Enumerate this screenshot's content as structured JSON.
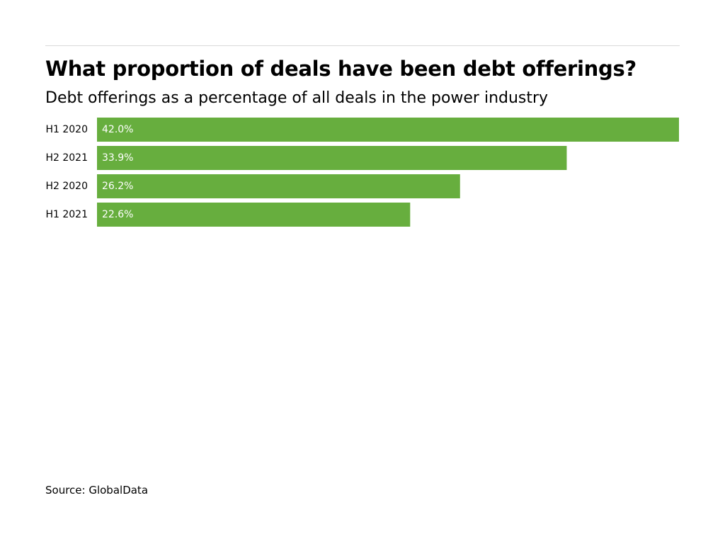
{
  "title": "What proportion of deals have been debt offerings?",
  "subtitle": "Debt offerings as a percentage of all deals in the power industry",
  "source": "Source: GlobalData",
  "colors": {
    "bar": "#67ae3e",
    "bar_label": "#ffffff",
    "category_label": "#000000",
    "rule": "#d9d9d9"
  },
  "chart_data": {
    "type": "bar",
    "orientation": "horizontal",
    "title": "What proportion of deals have been debt offerings?",
    "subtitle": "Debt offerings as a percentage of all deals in the power industry",
    "categories": [
      "H1 2020",
      "H2 2021",
      "H2 2020",
      "H1 2021"
    ],
    "values": [
      42.0,
      33.9,
      26.2,
      22.6
    ],
    "value_labels": [
      "42.0%",
      "33.9%",
      "26.2%",
      "22.6%"
    ],
    "unit": "%",
    "xlim": [
      0,
      42.0
    ],
    "grid": false,
    "legend": "none"
  }
}
